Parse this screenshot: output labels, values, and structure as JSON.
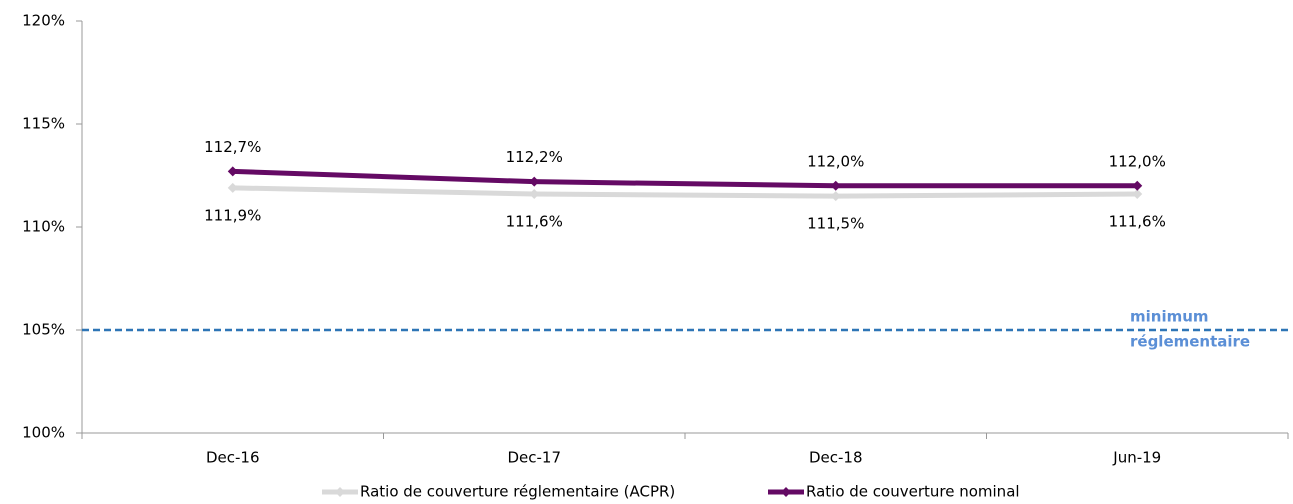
{
  "chart_data": {
    "type": "line",
    "categories": [
      "Dec-16",
      "Dec-17",
      "Dec-18",
      "Jun-19"
    ],
    "series": [
      {
        "name": "Ratio de couverture réglementaire (ACPR)",
        "color": "#d9d9d9",
        "values": [
          111.9,
          111.6,
          111.5,
          111.6
        ],
        "value_labels": [
          "111,9%",
          "111,6%",
          "111,5%",
          "111,6%"
        ],
        "label_position": "below"
      },
      {
        "name": "Ratio de couverture nominal",
        "color": "#640a64",
        "values": [
          112.7,
          112.2,
          112.0,
          112.0
        ],
        "value_labels": [
          "112,7%",
          "112,2%",
          "112,0%",
          "112,0%"
        ],
        "label_position": "above"
      }
    ],
    "ylim": [
      100,
      120
    ],
    "yticks": [
      {
        "value": 100,
        "label": "100%"
      },
      {
        "value": 105,
        "label": "105%"
      },
      {
        "value": 110,
        "label": "110%"
      },
      {
        "value": 115,
        "label": "115%"
      },
      {
        "value": 120,
        "label": "120%"
      }
    ],
    "reference_line": {
      "value": 105,
      "color": "#2e75b6",
      "label_color": "#5b8fd6",
      "label_lines": [
        "minimum",
        "réglementaire"
      ]
    },
    "legend": "bottom"
  }
}
